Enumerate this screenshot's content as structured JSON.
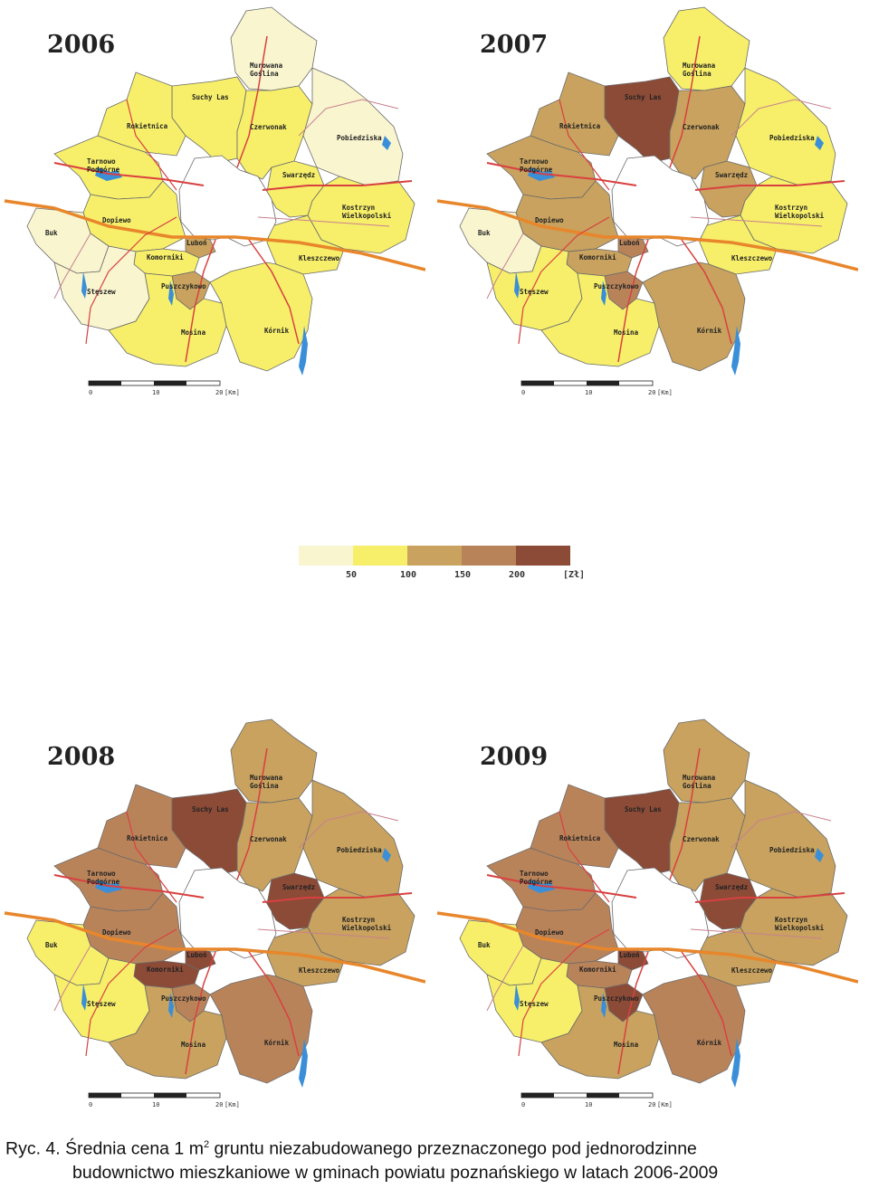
{
  "panels": [
    {
      "year": "2006"
    },
    {
      "year": "2007"
    },
    {
      "year": "2008"
    },
    {
      "year": "2009"
    }
  ],
  "municipalities": [
    "Murowana Goślina",
    "Suchy Las",
    "Rokietnica",
    "Czerwonak",
    "Pobiedziska",
    "Tarnowo Podgórne",
    "Swarzędz",
    "Kostrzyn Wielkopolski",
    "Dopiewo",
    "Buk",
    "Luboń",
    "Komorniki",
    "Kleszczewo",
    "Stęszew",
    "Puszczykowo",
    "Mosina",
    "Kórnik"
  ],
  "classes": {
    "Murowana Goślina": [
      0,
      1,
      2,
      2
    ],
    "Suchy Las": [
      1,
      4,
      4,
      4
    ],
    "Rokietnica": [
      1,
      2,
      3,
      3
    ],
    "Czerwonak": [
      1,
      2,
      2,
      2
    ],
    "Pobiedziska": [
      0,
      1,
      2,
      2
    ],
    "Tarnowo Podgórne": [
      1,
      2,
      3,
      3
    ],
    "Swarzędz": [
      1,
      2,
      4,
      4
    ],
    "Kostrzyn Wielkopolski": [
      1,
      1,
      2,
      2
    ],
    "Dopiewo": [
      1,
      2,
      3,
      3
    ],
    "Buk": [
      0,
      0,
      1,
      1
    ],
    "Luboń": [
      2,
      3,
      4,
      4
    ],
    "Komorniki": [
      1,
      2,
      4,
      3
    ],
    "Kleszczewo": [
      1,
      1,
      2,
      2
    ],
    "Stęszew": [
      0,
      1,
      1,
      1
    ],
    "Puszczykowo": [
      2,
      3,
      3,
      4
    ],
    "Mosina": [
      1,
      1,
      2,
      2
    ],
    "Kórnik": [
      1,
      2,
      3,
      3
    ]
  },
  "scale_labels": [
    "0",
    "10",
    "20",
    "[Km]"
  ],
  "legend": {
    "colors": [
      "#f9f5cf",
      "#f7ef6a",
      "#c8a25e",
      "#b9835a",
      "#8c4b37"
    ],
    "labels": [
      "50",
      "100",
      "150",
      "200",
      "[Zł]"
    ]
  },
  "caption": {
    "line1_a": "Ryc. 4.  Średnia cena  1 m",
    "sup": "2",
    "line1_b": " gruntu niezabudowanego przeznaczonego pod jednorodzinne",
    "line2": "budownictwo mieszkaniowe w gminach powiatu poznańskiego w latach 2006-2009"
  }
}
